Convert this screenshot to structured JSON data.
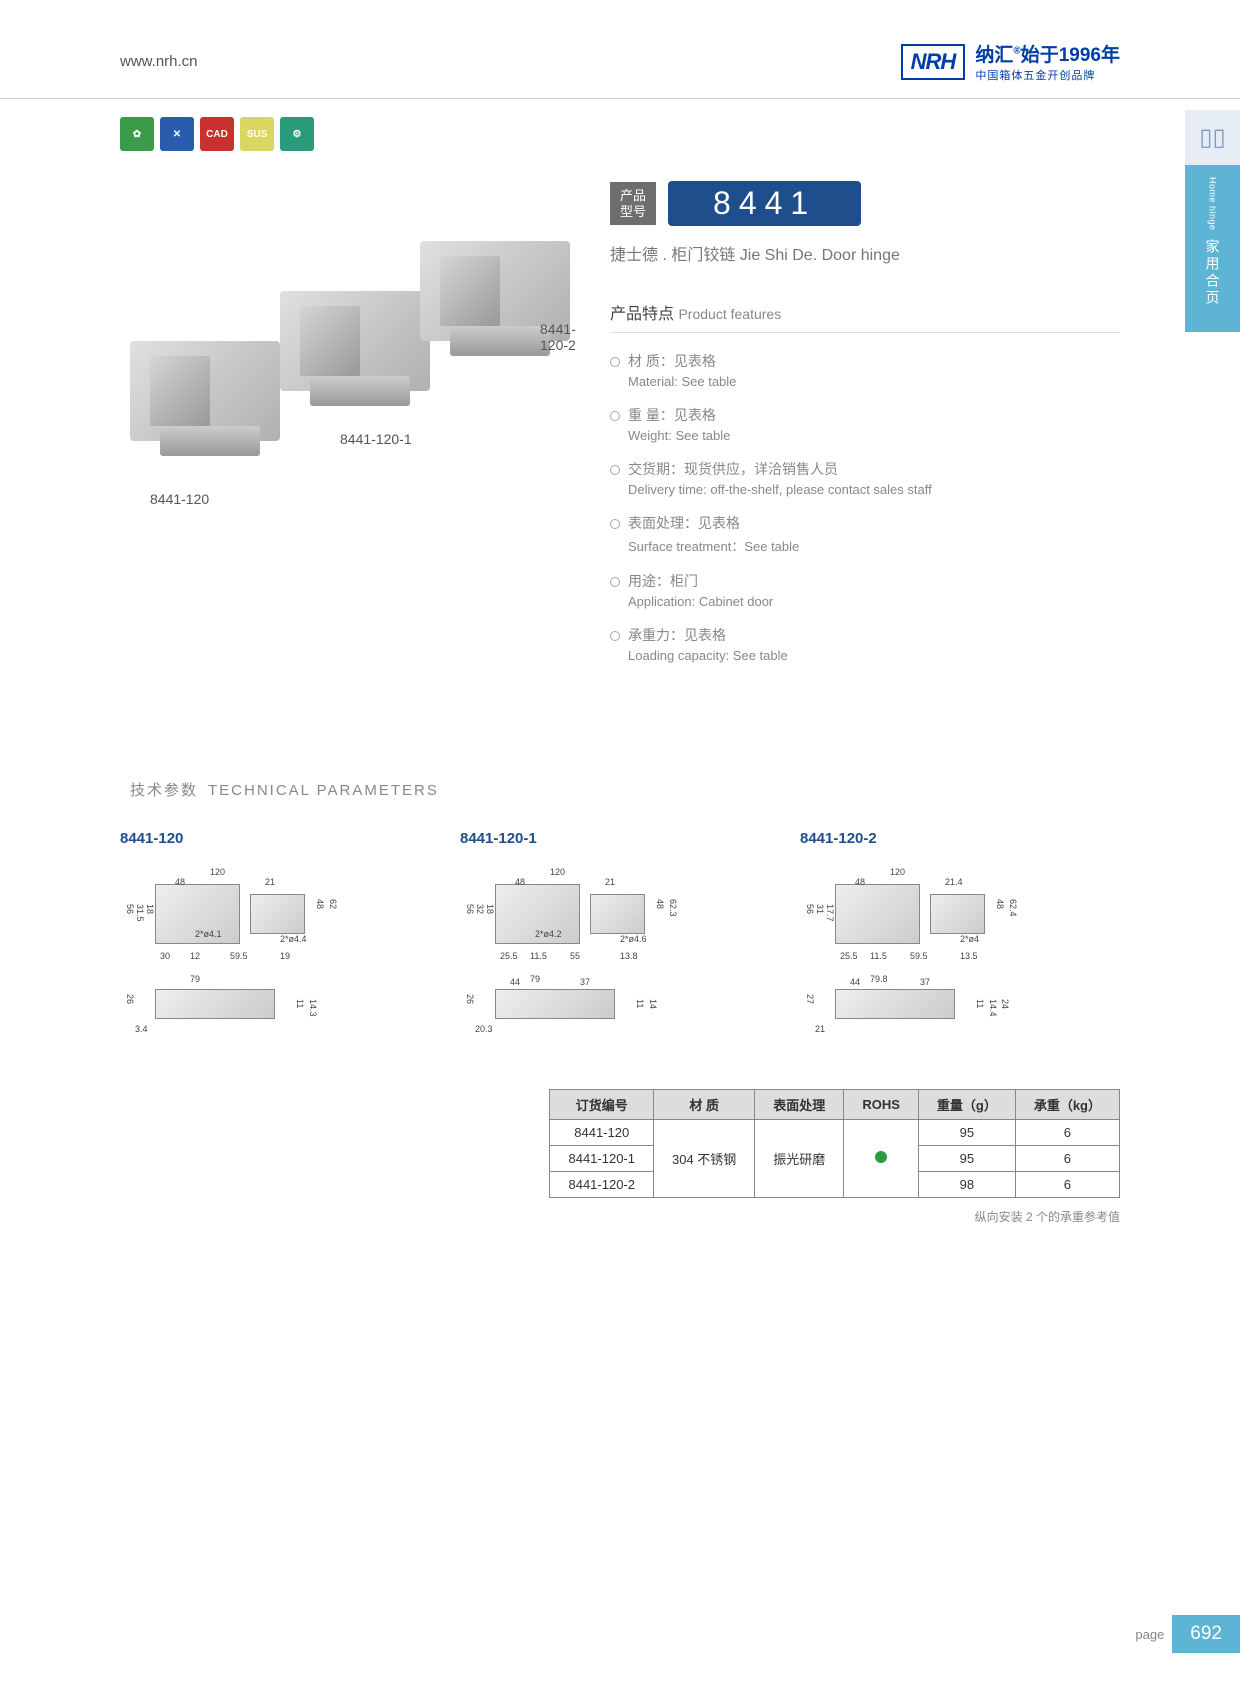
{
  "header": {
    "url": "www.nrh.cn",
    "logo": "NRH",
    "brand_cn": "纳汇",
    "reg": "®",
    "since": "始于1996年",
    "tagline": "中国箱体五金开创品牌"
  },
  "side": {
    "cn": "家用合页",
    "en": "Home hinge"
  },
  "icons": [
    {
      "bg": "#3a9b4a",
      "txt": "✿"
    },
    {
      "bg": "#2a5cad",
      "txt": "✕"
    },
    {
      "bg": "#c93030",
      "txt": "CAD"
    },
    {
      "bg": "#d8d860",
      "txt": "SUS"
    },
    {
      "bg": "#2a9b7a",
      "txt": "⚙"
    }
  ],
  "model": {
    "tag": "产品\n型号",
    "number": "8441",
    "subtitle": "捷士德 . 柜门铰链   Jie Shi De. Door hinge"
  },
  "product_labels": {
    "p1": "8441-120",
    "p2": "8441-120-1",
    "p3": "8441-120-2"
  },
  "features": {
    "title_cn": "产品特点",
    "title_en": "Product features",
    "items": [
      {
        "cn": "材 质：见表格",
        "en": "Material: See table"
      },
      {
        "cn": "重 量：见表格",
        "en": "Weight: See table"
      },
      {
        "cn": "交货期：现货供应，详洽销售人员",
        "en": "Delivery time: off-the-shelf, please contact sales staff"
      },
      {
        "cn": "表面处理：见表格",
        "en": "Surface treatment：See table"
      },
      {
        "cn": "用途：柜门",
        "en": "Application: Cabinet door"
      },
      {
        "cn": "承重力：见表格",
        "en": "Loading capacity: See table"
      }
    ]
  },
  "tech": {
    "title_cn": "技术参数",
    "title_en": "TECHNICAL PARAMETERS",
    "diagrams": [
      {
        "label": "8441-120",
        "dims": {
          "w": "120",
          "w2": "48",
          "w3": "21",
          "h": "56",
          "h2": "31.5",
          "h3": "18",
          "d1": "2*ø4.1",
          "d2": "2*ø4.4",
          "b1": "30",
          "b2": "12",
          "b3": "59.5",
          "b4": "19",
          "sw": "79",
          "sh": "26",
          "sh2": "3.4",
          "sh3": "11",
          "sh4": "14.3",
          "rh": "48",
          "rh2": "62"
        }
      },
      {
        "label": "8441-120-1",
        "dims": {
          "w": "120",
          "w2": "48",
          "w3": "21",
          "h": "56",
          "h2": "32",
          "h3": "18",
          "d1": "2*ø4.2",
          "d2": "2*ø4.6",
          "b1": "25.5",
          "b2": "11.5",
          "b3": "55",
          "b4": "13.8",
          "sw": "79",
          "sw2": "44",
          "sw3": "37",
          "sh": "26",
          "sh2": "20.3",
          "sh3": "11",
          "sh4": "14",
          "rh": "48",
          "rh2": "62.3"
        }
      },
      {
        "label": "8441-120-2",
        "dims": {
          "w": "120",
          "w2": "48",
          "w3": "21.4",
          "h": "56",
          "h2": "31",
          "h3": "17.7",
          "d2": "2*ø4",
          "b1": "25.5",
          "b2": "11.5",
          "b3": "59.5",
          "b4": "13.5",
          "sw": "79.8",
          "sw2": "44",
          "sw3": "37",
          "sh": "27",
          "sh2": "21",
          "sh3": "11",
          "sh4": "14.4",
          "sh5": "24",
          "rh": "48",
          "rh2": "62.4"
        }
      }
    ]
  },
  "table": {
    "headers": [
      "订货编号",
      "材   质",
      "表面处理",
      "ROHS",
      "重量（g）",
      "承重（kg）"
    ],
    "material": "304 不锈钢",
    "treatment": "振光研磨",
    "rows": [
      {
        "code": "8441-120",
        "weight": "95",
        "load": "6"
      },
      {
        "code": "8441-120-1",
        "weight": "95",
        "load": "6"
      },
      {
        "code": "8441-120-2",
        "weight": "98",
        "load": "6"
      }
    ],
    "note": "纵向安装 2 个的承重参考值"
  },
  "footer": {
    "label": "page",
    "num": "692"
  }
}
